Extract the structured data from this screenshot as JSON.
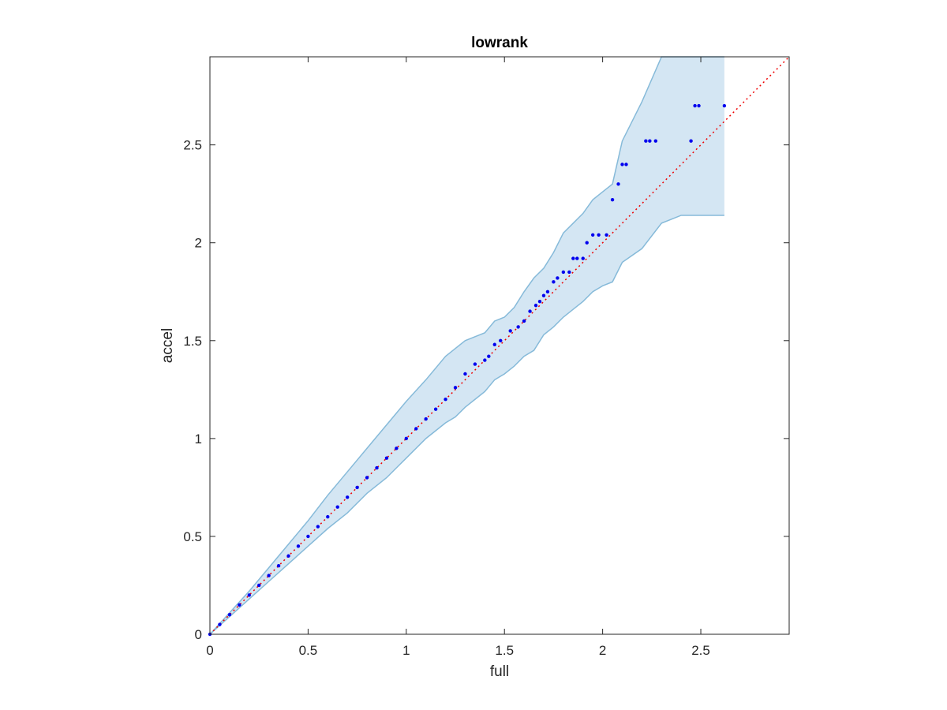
{
  "chart_data": {
    "type": "scatter",
    "title": "lowrank",
    "xlabel": "full",
    "ylabel": "accel",
    "xlim": [
      0,
      2.95
    ],
    "ylim": [
      0,
      2.95
    ],
    "xticks": [
      0,
      0.5,
      1,
      1.5,
      2,
      2.5
    ],
    "yticks": [
      0,
      0.5,
      1,
      1.5,
      2,
      2.5
    ],
    "xtick_labels": [
      "0",
      "0.5",
      "1",
      "1.5",
      "2",
      "2.5"
    ],
    "ytick_labels": [
      "0",
      "0.5",
      "1",
      "1.5",
      "2",
      "2.5"
    ],
    "grid": false,
    "colors": {
      "points": "#0000ee",
      "reference_line": "#ee0000",
      "band_fill": "#d4e6f3",
      "band_edge": "#86bad9",
      "axes": "#262626"
    },
    "reference_line": {
      "x": [
        0,
        2.95
      ],
      "y": [
        0,
        2.95
      ],
      "style": "dotted"
    },
    "band": {
      "x": [
        0,
        0.1,
        0.2,
        0.3,
        0.4,
        0.5,
        0.6,
        0.7,
        0.8,
        0.9,
        1.0,
        1.1,
        1.2,
        1.25,
        1.3,
        1.35,
        1.4,
        1.45,
        1.5,
        1.55,
        1.6,
        1.65,
        1.7,
        1.75,
        1.8,
        1.85,
        1.9,
        1.95,
        2.0,
        2.05,
        2.1,
        2.2,
        2.3,
        2.4,
        2.5,
        2.55,
        2.62
      ],
      "upper": [
        0,
        0.11,
        0.22,
        0.34,
        0.46,
        0.58,
        0.71,
        0.83,
        0.95,
        1.07,
        1.19,
        1.3,
        1.42,
        1.46,
        1.5,
        1.52,
        1.54,
        1.6,
        1.62,
        1.67,
        1.75,
        1.82,
        1.87,
        1.95,
        2.05,
        2.1,
        2.15,
        2.22,
        2.26,
        2.3,
        2.52,
        2.72,
        2.95,
        2.95,
        2.95,
        2.95,
        2.95
      ],
      "lower": [
        0,
        0.09,
        0.18,
        0.27,
        0.36,
        0.45,
        0.54,
        0.62,
        0.72,
        0.8,
        0.9,
        1.0,
        1.08,
        1.11,
        1.16,
        1.2,
        1.24,
        1.3,
        1.33,
        1.37,
        1.42,
        1.45,
        1.53,
        1.57,
        1.62,
        1.66,
        1.7,
        1.75,
        1.78,
        1.8,
        1.9,
        1.97,
        2.1,
        2.14,
        2.14,
        2.14,
        2.14
      ]
    },
    "series": [
      {
        "x": [
          0,
          0.05,
          0.1,
          0.15,
          0.2,
          0.25,
          0.3,
          0.35,
          0.4,
          0.45,
          0.5,
          0.55,
          0.6,
          0.65,
          0.7,
          0.75,
          0.8,
          0.85,
          0.9,
          0.95,
          1.0,
          1.05,
          1.1,
          1.15,
          1.2,
          1.25,
          1.3,
          1.35,
          1.4,
          1.42,
          1.45,
          1.48,
          1.53,
          1.57,
          1.6,
          1.63,
          1.66,
          1.68,
          1.7,
          1.72,
          1.75,
          1.77,
          1.8,
          1.83,
          1.85,
          1.87,
          1.9,
          1.92,
          1.95,
          1.98,
          2.02,
          2.05,
          2.08,
          2.1,
          2.12,
          2.22,
          2.24,
          2.27,
          2.45,
          2.47,
          2.49,
          2.62
        ],
        "y": [
          0,
          0.05,
          0.1,
          0.15,
          0.2,
          0.25,
          0.3,
          0.35,
          0.4,
          0.45,
          0.5,
          0.55,
          0.6,
          0.65,
          0.7,
          0.75,
          0.8,
          0.85,
          0.9,
          0.95,
          1.0,
          1.05,
          1.1,
          1.15,
          1.2,
          1.26,
          1.33,
          1.38,
          1.4,
          1.42,
          1.48,
          1.5,
          1.55,
          1.57,
          1.6,
          1.65,
          1.68,
          1.7,
          1.73,
          1.75,
          1.8,
          1.82,
          1.85,
          1.85,
          1.92,
          1.92,
          1.92,
          2.0,
          2.04,
          2.04,
          2.04,
          2.22,
          2.3,
          2.4,
          2.4,
          2.52,
          2.52,
          2.52,
          2.52,
          2.7,
          2.7,
          2.7
        ]
      }
    ]
  }
}
